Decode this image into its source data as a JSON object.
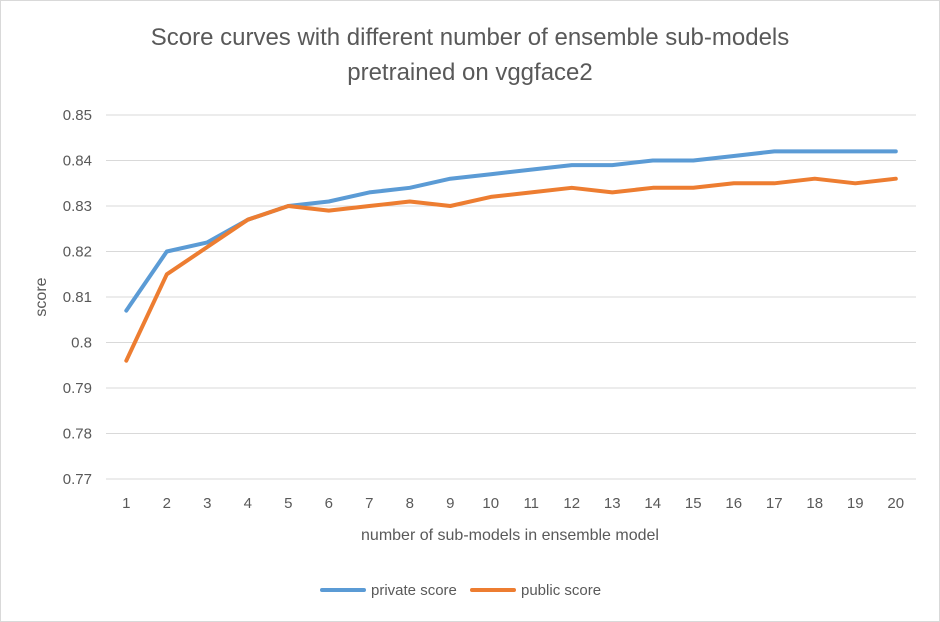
{
  "chart_data": {
    "type": "line",
    "title": "Score curves with different number of ensemble sub-models",
    "subtitle": "pretrained on vggface2",
    "xlabel": "number of sub-models in ensemble model",
    "ylabel": "score",
    "categories": [
      "1",
      "2",
      "3",
      "4",
      "5",
      "6",
      "7",
      "8",
      "9",
      "10",
      "11",
      "12",
      "13",
      "14",
      "15",
      "16",
      "17",
      "18",
      "19",
      "20"
    ],
    "ylim": [
      0.77,
      0.85
    ],
    "yticks": [
      "0.77",
      "0.78",
      "0.79",
      "0.8",
      "0.81",
      "0.82",
      "0.83",
      "0.84",
      "0.85"
    ],
    "grid": true,
    "legend_position": "bottom",
    "series": [
      {
        "name": "private score",
        "color": "#5b9bd5",
        "values": [
          0.807,
          0.82,
          0.822,
          0.827,
          0.83,
          0.831,
          0.833,
          0.834,
          0.836,
          0.837,
          0.838,
          0.839,
          0.839,
          0.84,
          0.84,
          0.841,
          0.842,
          0.842,
          0.842,
          0.842
        ]
      },
      {
        "name": "public score",
        "color": "#ed7d31",
        "values": [
          0.796,
          0.815,
          0.821,
          0.827,
          0.83,
          0.829,
          0.83,
          0.831,
          0.83,
          0.832,
          0.833,
          0.834,
          0.833,
          0.834,
          0.834,
          0.835,
          0.835,
          0.836,
          0.835,
          0.836
        ]
      }
    ]
  }
}
